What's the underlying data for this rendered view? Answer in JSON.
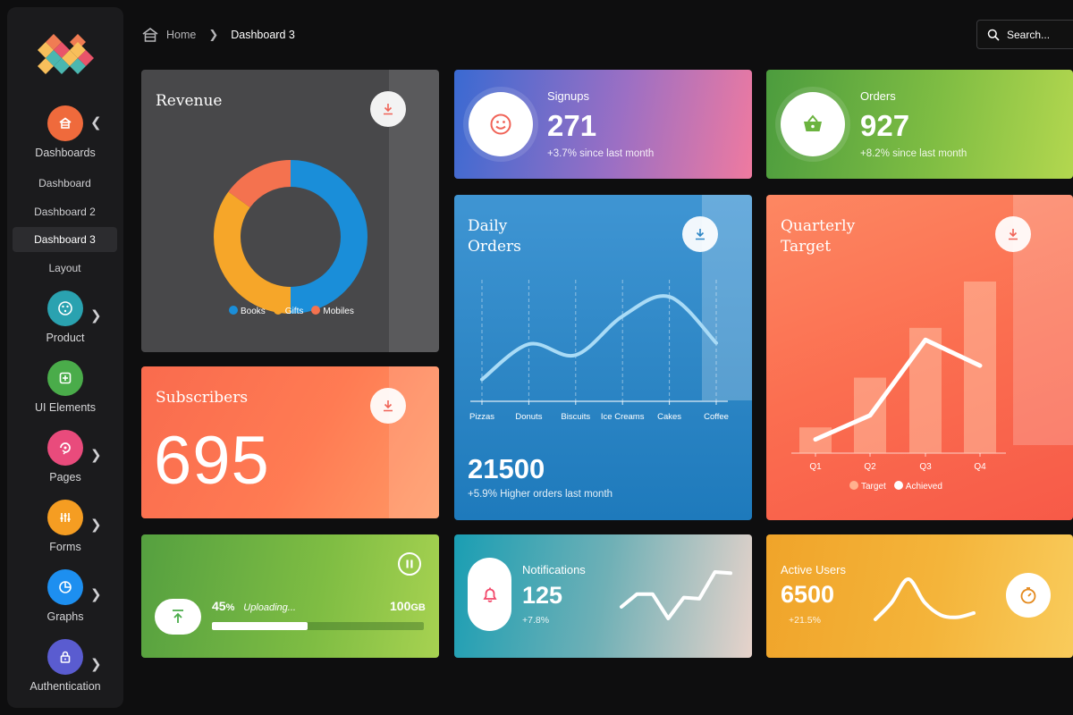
{
  "breadcrumb": {
    "home": "Home",
    "current": "Dashboard 3"
  },
  "search": {
    "placeholder": "Search..."
  },
  "sidebar": {
    "groups": [
      {
        "label": "Dashboards",
        "icon": "home-icon",
        "color": "#ef6a3c",
        "expanded": true
      },
      {
        "label": "Product",
        "icon": "product-icon",
        "color": "#2aa2b0"
      },
      {
        "label": "UI Elements",
        "icon": "ui-elements-icon",
        "color": "#4aac4a"
      },
      {
        "label": "Pages",
        "icon": "pages-icon",
        "color": "#e94b7c"
      },
      {
        "label": "Forms",
        "icon": "forms-icon",
        "color": "#f59d22"
      },
      {
        "label": "Graphs",
        "icon": "pie-chart-icon",
        "color": "#1d8ff0"
      },
      {
        "label": "Authentication",
        "icon": "lock-icon",
        "color": "#5a5cd0"
      }
    ],
    "subitems": [
      {
        "label": "Dashboard"
      },
      {
        "label": "Dashboard 2"
      },
      {
        "label": "Dashboard 3",
        "active": true
      },
      {
        "label": "Layout"
      }
    ]
  },
  "cards": {
    "revenue": {
      "title": "Revenue",
      "chart_data": {
        "type": "pie",
        "categories": [
          "Books",
          "Gifts",
          "Mobiles"
        ],
        "values": [
          50,
          35,
          15
        ],
        "colors": [
          "#1a8ed9",
          "#f6a629",
          "#f4724f"
        ],
        "legend": "bottom"
      }
    },
    "signups": {
      "label": "Signups",
      "value": "271",
      "sub": "+3.7% since last month",
      "icon": "smile-icon"
    },
    "orders": {
      "label": "Orders",
      "value": "927",
      "sub": "+8.2% since last month",
      "icon": "basket-icon"
    },
    "subscribers": {
      "title": "Subscribers",
      "value": "695"
    },
    "daily_orders": {
      "title_line1": "Daily",
      "title_line2": "Orders",
      "value": "21500",
      "sub": "+5.9% Higher orders last month",
      "chart_data": {
        "type": "line",
        "categories": [
          "Pizzas",
          "Donuts",
          "Biscuits",
          "Ice Creams",
          "Cakes",
          "Coffee"
        ],
        "values": [
          18,
          47,
          38,
          70,
          86,
          48
        ],
        "ylim": [
          0,
          100
        ],
        "grid": true
      }
    },
    "quarterly": {
      "title_line1": "Quarterly",
      "title_line2": "Target",
      "chart_data": {
        "type": "bar",
        "categories": [
          "Q1",
          "Q2",
          "Q3",
          "Q4"
        ],
        "series": [
          {
            "name": "Target",
            "values": [
              15,
              44,
              73,
              100
            ]
          },
          {
            "name": "Achieved",
            "values": [
              8,
              22,
              66,
              51
            ]
          }
        ],
        "ylim": [
          0,
          100
        ],
        "legend": "bottom"
      }
    },
    "upload": {
      "percent": "45",
      "pct_unit": "%",
      "status": "Uploading...",
      "total": "100",
      "total_unit": "GB",
      "progress": 0.45
    },
    "notifications": {
      "label": "Notifications",
      "value": "125",
      "sub": "+7.8%",
      "chart_data": {
        "type": "line",
        "values": [
          12,
          23,
          23,
          2,
          20,
          19,
          42,
          41
        ]
      }
    },
    "active_users": {
      "label": "Active Users",
      "value": "6500",
      "sub": "+21.5%",
      "chart_data": {
        "type": "line",
        "values": [
          2,
          18,
          40,
          18,
          6,
          4,
          8
        ]
      }
    }
  }
}
